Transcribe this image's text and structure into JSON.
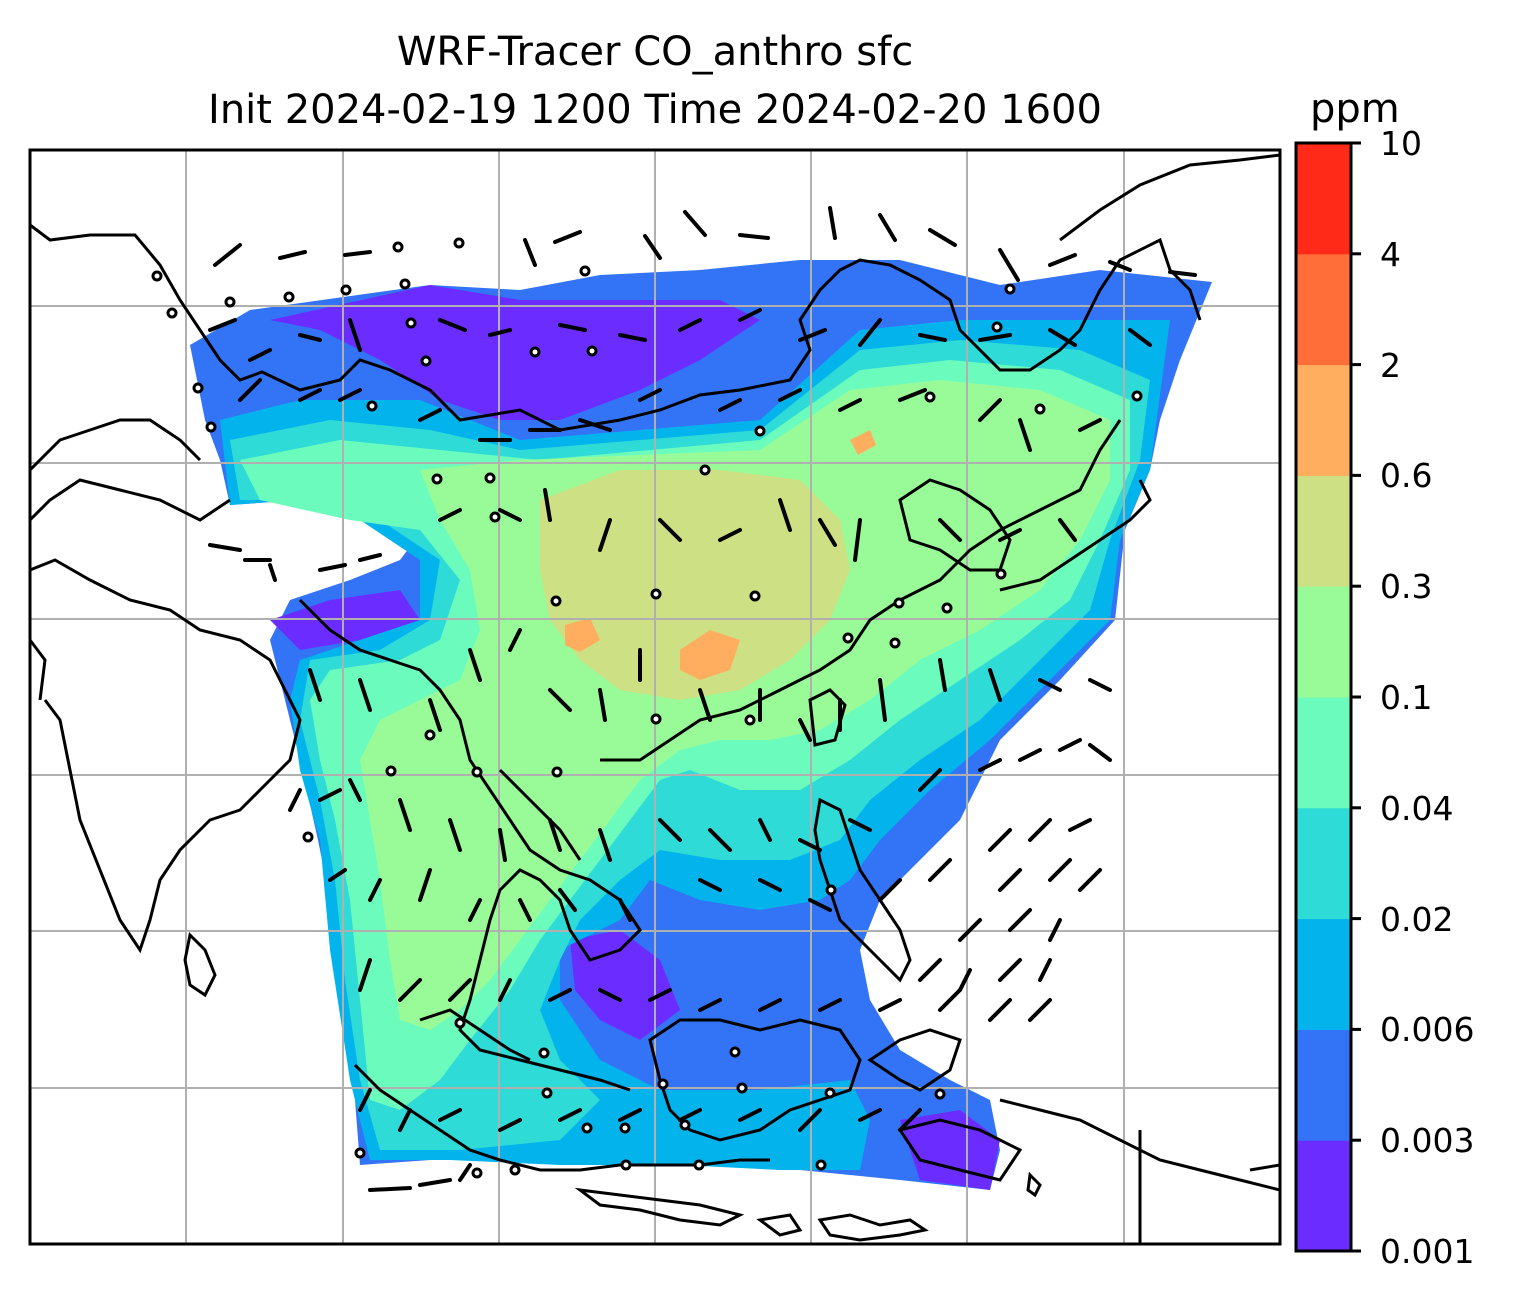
{
  "title": {
    "line1": "WRF-Tracer CO_anthro sfc",
    "line2": "Init 2024-02-19 1200 Time 2024-02-20 1600"
  },
  "colorbar": {
    "units": "ppm",
    "ticks": [
      "10",
      "4",
      "2",
      "0.6",
      "0.3",
      "0.1",
      "0.04",
      "0.02",
      "0.006",
      "0.003",
      "0.001"
    ],
    "colors": [
      "#2727ff",
      "#6a2cff",
      "#3374f6",
      "#03b4ec",
      "#2fdbd6",
      "#6bfcbd",
      "#98fb98",
      "#cde083",
      "#ffad5e",
      "#ff6d38",
      "#ff2a18"
    ]
  },
  "map": {
    "features": [
      "coastlines",
      "country borders",
      "lat-lon gridlines",
      "wind barbs",
      "calm-wind circles"
    ]
  }
}
